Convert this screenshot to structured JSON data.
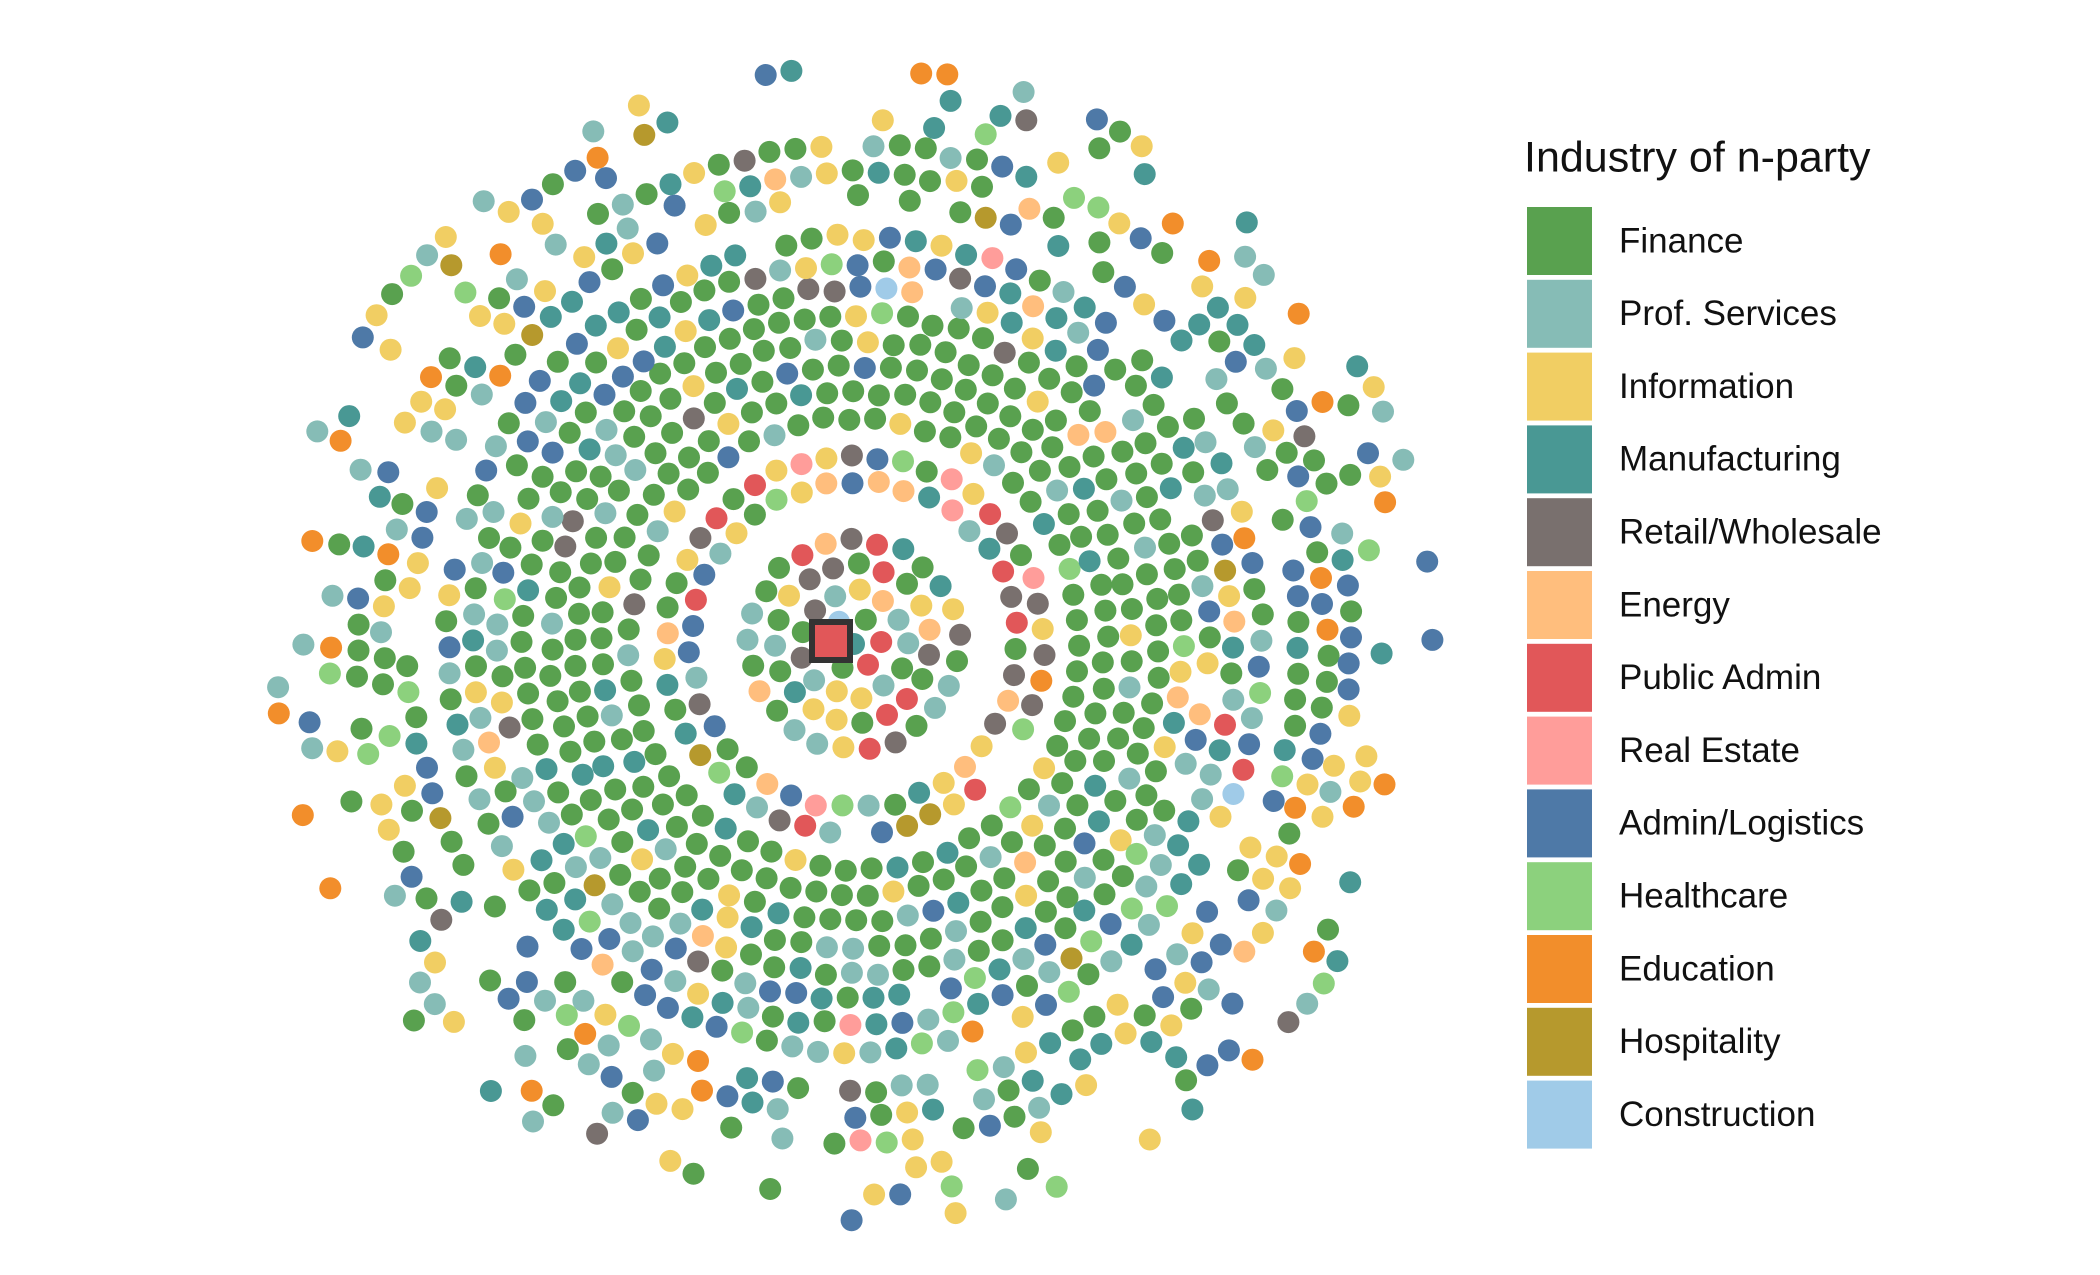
{
  "chart_data": {
    "type": "network",
    "legend": {
      "title": "Industry of n-party",
      "items": [
        {
          "name": "Finance",
          "color": "#59a14f"
        },
        {
          "name": "Prof. Services",
          "color": "#86bcb6"
        },
        {
          "name": "Information",
          "color": "#f1ce63"
        },
        {
          "name": "Manufacturing",
          "color": "#499894"
        },
        {
          "name": "Retail/Wholesale",
          "color": "#79706e"
        },
        {
          "name": "Energy",
          "color": "#ffbe7d"
        },
        {
          "name": "Public Admin",
          "color": "#e15759"
        },
        {
          "name": "Real Estate",
          "color": "#ff9d9a"
        },
        {
          "name": "Admin/Logistics",
          "color": "#4e79a7"
        },
        {
          "name": "Healthcare",
          "color": "#8cd17d"
        },
        {
          "name": "Education",
          "color": "#f28e2b"
        },
        {
          "name": "Hospitality",
          "color": "#b6992d"
        },
        {
          "name": "Construction",
          "color": "#a0cbe8"
        }
      ]
    }
  }
}
